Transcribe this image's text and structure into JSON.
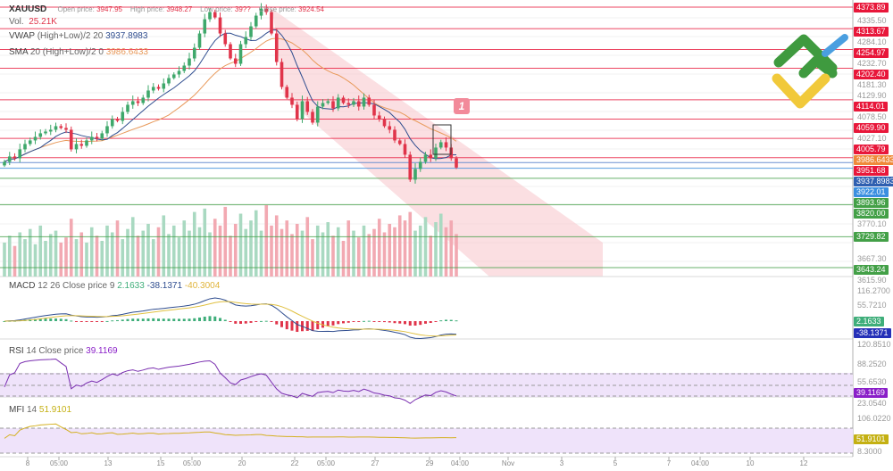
{
  "header": {
    "symbol": "XAUUSD",
    "open_label": "Open price:",
    "open": "3947.95",
    "high_label": "High price:",
    "high": "3948.27",
    "low_label": "Low price:",
    "low": "39??",
    "close_label": "Close price:",
    "close": "3924.54",
    "vol_label": "Vol.",
    "vol": "25.21K"
  },
  "indicators": {
    "vwap": {
      "label": "VWAP",
      "params": "(High+Low)/2 20",
      "value": "3937.8983"
    },
    "sma": {
      "label": "SMA",
      "params": "20 (High+Low)/2 0",
      "value": "3986.6433"
    },
    "macd": {
      "label": "MACD",
      "params": "12 26 Close price 9",
      "v1": "2.1633",
      "v2": "-38.1371",
      "v3": "-40.3004"
    },
    "rsi": {
      "label": "RSI",
      "params": "14 Close price",
      "value": "39.1169"
    },
    "mfi": {
      "label": "MFI",
      "params": "14",
      "value": "51.9101"
    }
  },
  "price_levels": [
    {
      "value": "4373.89",
      "color": "#e8173a"
    },
    {
      "value": "4313.67",
      "color": "#e8173a"
    },
    {
      "value": "4254.97",
      "color": "#e8173a"
    },
    {
      "value": "4202.40",
      "color": "#e8173a"
    },
    {
      "value": "4114.01",
      "color": "#e8173a"
    },
    {
      "value": "4059.90",
      "color": "#e8173a"
    },
    {
      "value": "4005.79",
      "color": "#e8173a"
    },
    {
      "value": "3951.68",
      "color": "#e8173a"
    },
    {
      "value": "3922.01",
      "color": "#3b8fe0"
    },
    {
      "value": "3893.96",
      "color": "#43a047"
    },
    {
      "value": "3820.00",
      "color": "#43a047"
    },
    {
      "value": "3729.82",
      "color": "#43a047"
    },
    {
      "value": "3643.24",
      "color": "#43a047"
    }
  ],
  "current_labels": [
    {
      "value": "3986.6433",
      "color": "#ef8a3a"
    },
    {
      "value": "3937.8983",
      "color": "#2f5fb0"
    }
  ],
  "price_ticks": [
    "4335.50",
    "4284.10",
    "4232.70",
    "4181.30",
    "4129.90",
    "4078.50",
    "4027.10",
    "3770.10",
    "3667.30",
    "3615.90"
  ],
  "macd_axis": [
    "116.2700",
    "55.7210"
  ],
  "macd_labels": [
    {
      "value": "2.1633",
      "color": "#3fae7a"
    },
    {
      "value": "-38.1371",
      "color": "#2530b8"
    }
  ],
  "rsi_axis": [
    "120.8510",
    "88.2520",
    "55.6530",
    "23.0540"
  ],
  "rsi_label": {
    "value": "39.1169",
    "color": "#8a1fc8"
  },
  "mfi_axis": [
    "106.0220",
    "8.3000"
  ],
  "mfi_label": {
    "value": "51.9101",
    "color": "#c4b012"
  },
  "annotation": {
    "text": "1"
  },
  "time_axis": [
    {
      "t": "8"
    },
    {
      "t": "05:00"
    },
    {
      "t": "13"
    },
    {
      "t": "15"
    },
    {
      "t": "05:00"
    },
    {
      "t": "20"
    },
    {
      "t": "22"
    },
    {
      "t": "05:00"
    },
    {
      "t": "27"
    },
    {
      "t": "29"
    },
    {
      "t": "04:00"
    },
    {
      "t": "Nov"
    },
    {
      "t": "3"
    },
    {
      "t": "5"
    },
    {
      "t": "7"
    },
    {
      "t": "04:00"
    },
    {
      "t": "10"
    },
    {
      "t": "12"
    }
  ],
  "colors": {
    "up": "#3fa86b",
    "down": "#e0344a",
    "vol_up": "#a9d9c1",
    "vol_down": "#f2a9b2",
    "vwap": "#2f4d8f",
    "sma": "#e8995a",
    "channel": "#f9c9cf"
  },
  "chart_data": {
    "type": "candlestick",
    "closes": [
      3940,
      3955,
      3950,
      3975,
      3990,
      4000,
      4010,
      4020,
      4025,
      4030,
      4040,
      4035,
      4030,
      3975,
      3990,
      3985,
      4000,
      4010,
      4005,
      4020,
      4040,
      4060,
      4055,
      4080,
      4100,
      4110,
      4105,
      4120,
      4140,
      4150,
      4145,
      4160,
      4175,
      4185,
      4195,
      4210,
      4230,
      4260,
      4300,
      4340,
      4360,
      4345,
      4300,
      4270,
      4230,
      4215,
      4270,
      4290,
      4320,
      4350,
      4370,
      4360,
      4300,
      4220,
      4150,
      4120,
      4100,
      4060,
      4110,
      4080,
      4050,
      4095,
      4105,
      4110,
      4090,
      4120,
      4105,
      4100,
      4110,
      4095,
      4120,
      4100,
      4070,
      4060,
      4040,
      4030,
      4000,
      3990,
      3960,
      3890,
      3920,
      3940,
      3960,
      3950,
      3980,
      3995,
      3980,
      3950,
      3924
    ],
    "volumes": [
      20,
      24,
      18,
      26,
      22,
      28,
      19,
      30,
      21,
      25,
      27,
      20,
      23,
      34,
      22,
      26,
      20,
      29,
      24,
      21,
      30,
      26,
      33,
      22,
      28,
      35,
      24,
      27,
      31,
      22,
      29,
      36,
      25,
      30,
      23,
      33,
      27,
      38,
      29,
      40,
      26,
      34,
      30,
      41,
      24,
      31,
      37,
      28,
      33,
      39,
      27,
      42,
      30,
      36,
      28,
      33,
      25,
      31,
      27,
      35,
      22,
      30,
      26,
      32,
      24,
      29,
      21,
      33,
      27,
      23,
      30,
      25,
      28,
      34,
      26,
      31,
      29,
      36,
      33,
      38,
      27,
      30,
      35,
      24,
      32,
      37,
      29,
      33,
      25
    ]
  }
}
